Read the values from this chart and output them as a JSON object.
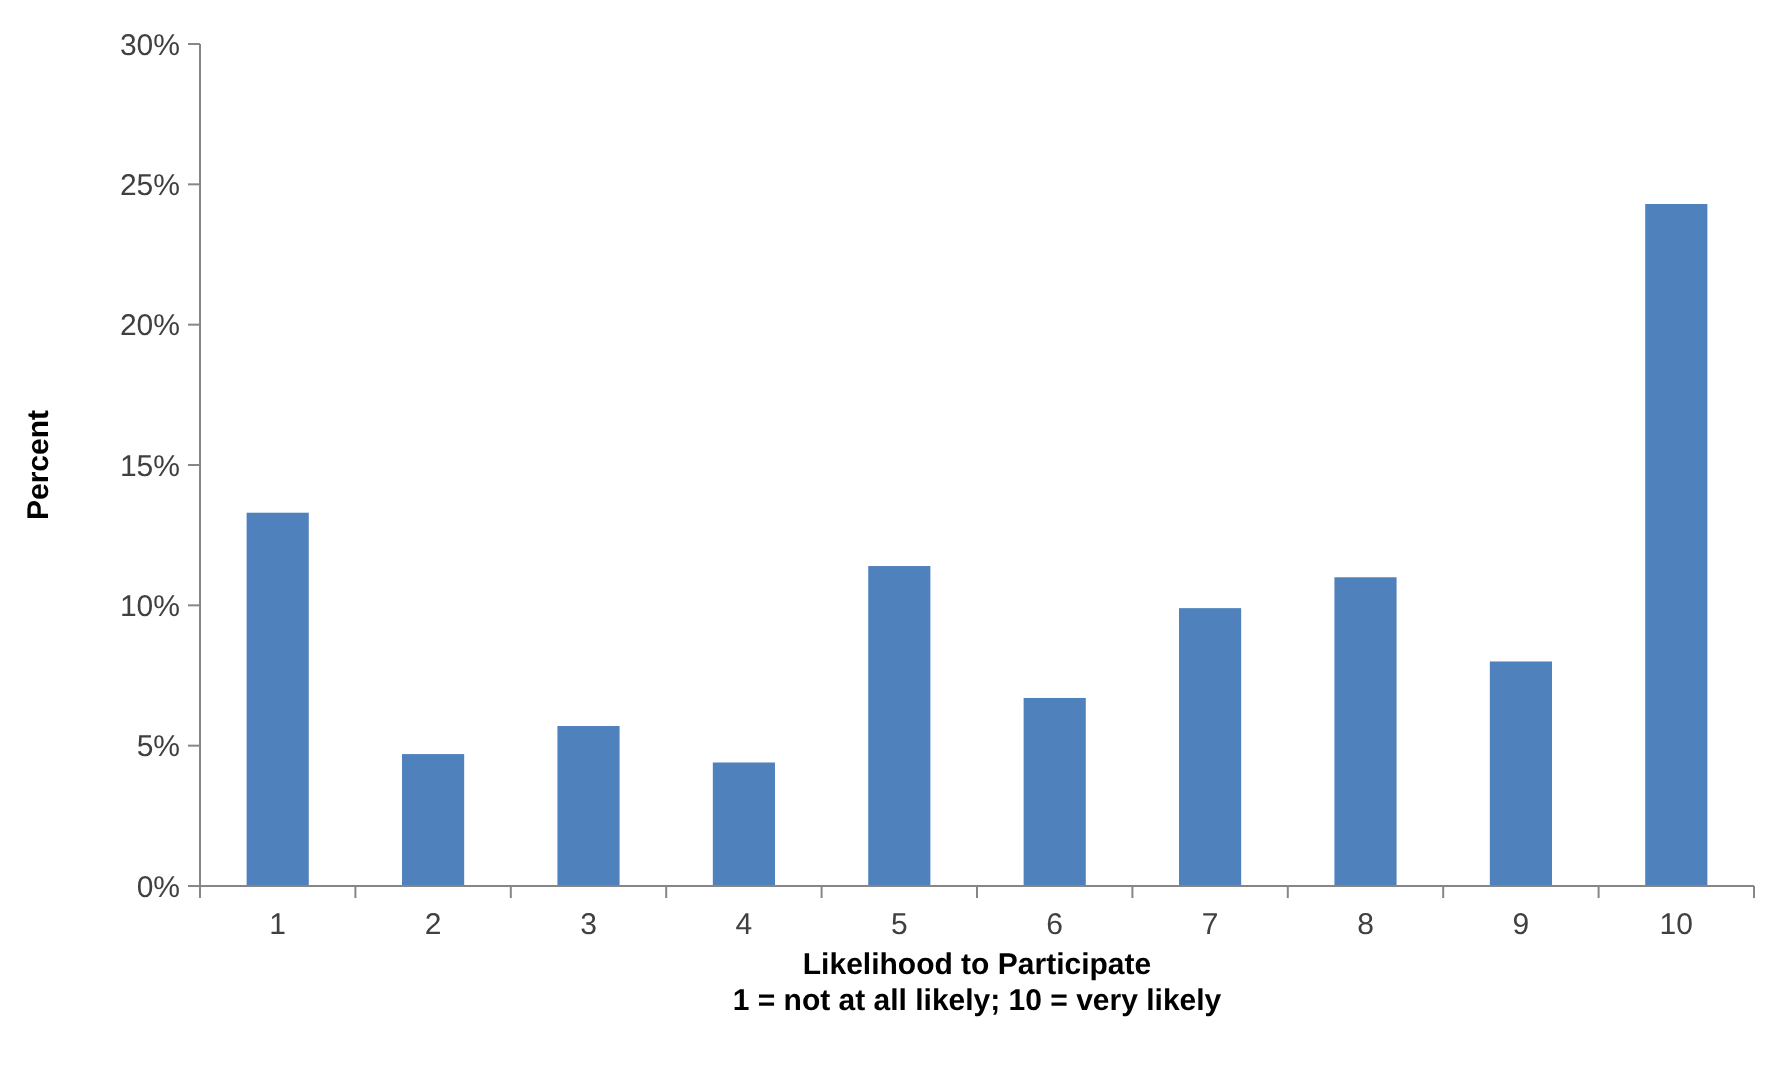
{
  "chart_data": {
    "type": "bar",
    "xlabel": "Likelihood to Participate\n1 = not at all likely; 10 = very likely",
    "ylabel": "Percent",
    "categories": [
      "1",
      "2",
      "3",
      "4",
      "5",
      "6",
      "7",
      "8",
      "9",
      "10"
    ],
    "values": [
      13.3,
      4.7,
      5.7,
      4.4,
      11.4,
      6.7,
      9.9,
      11.0,
      8.0,
      24.3
    ],
    "color": "#4f81bd",
    "ylim": [
      0,
      30
    ],
    "yticks": [
      {
        "value": 0,
        "label": "0%"
      },
      {
        "value": 5,
        "label": "5%"
      },
      {
        "value": 10,
        "label": "10%"
      },
      {
        "value": 15,
        "label": "15%"
      },
      {
        "value": 20,
        "label": "20%"
      },
      {
        "value": 25,
        "label": "25%"
      },
      {
        "value": 30,
        "label": "30%"
      }
    ],
    "grid": false
  }
}
